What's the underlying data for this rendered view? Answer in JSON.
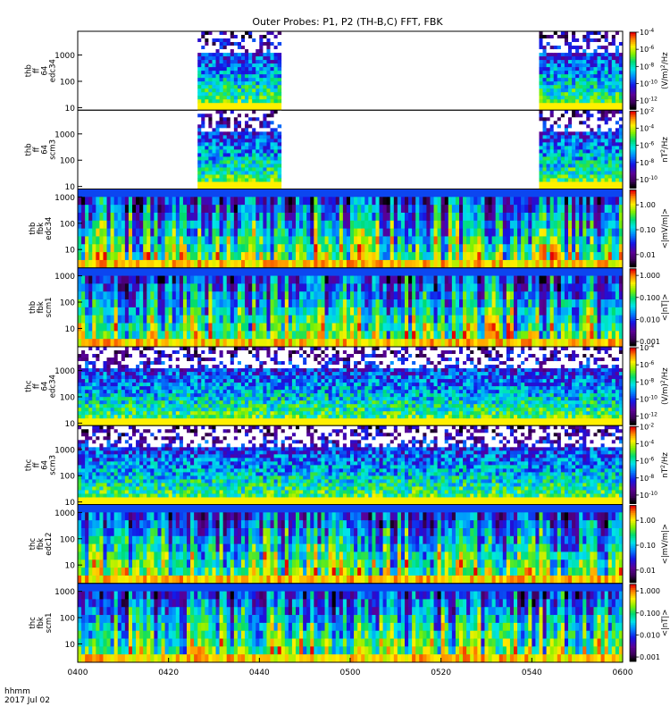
{
  "chart_data": {
    "type": "heatmap",
    "title": "Outer Probes: P1, P2 (TH-B,C) FFT, FBK",
    "x_axis": {
      "ticks": [
        "0400",
        "0420",
        "0440",
        "0500",
        "0520",
        "0540",
        "0600"
      ],
      "range_minutes": [
        0,
        120
      ],
      "label_line1": "hhmm",
      "label_line2": "2017 Jul 02"
    },
    "panels": [
      {
        "name_lines": [
          "thb",
          "ff",
          "64",
          "edc34"
        ],
        "kind": "fft",
        "y_ticks": [
          "1000",
          "100",
          "10"
        ],
        "y_range": [
          8,
          8000
        ],
        "colorbar": {
          "ticks": [
            "10^-4",
            "10^-6",
            "10^-8",
            "10^-10",
            "10^-12"
          ],
          "label": "(V/m)^2/Hz",
          "range_exp": [
            -13,
            -4
          ]
        },
        "coverage_minutes": [
          [
            26.5,
            44.5
          ],
          [
            101.5,
            120
          ]
        ]
      },
      {
        "name_lines": [
          "thb",
          "ff",
          "64",
          "scm3"
        ],
        "kind": "fft",
        "y_ticks": [
          "1000",
          "100",
          "10"
        ],
        "y_range": [
          8,
          8000
        ],
        "colorbar": {
          "ticks": [
            "10^-2",
            "10^-4",
            "10^-6",
            "10^-8",
            "10^-10"
          ],
          "label": "nT^2/Hz",
          "range_exp": [
            -11,
            -2
          ]
        },
        "coverage_minutes": [
          [
            26.5,
            44.5
          ],
          [
            101.5,
            120
          ]
        ]
      },
      {
        "name_lines": [
          "thb",
          "fbk",
          "edc34"
        ],
        "kind": "fbk",
        "y_ticks": [
          "1000",
          "100",
          "10"
        ],
        "y_range": [
          2,
          2000
        ],
        "colorbar": {
          "ticks": [
            "1.00",
            "0.10",
            "0.01"
          ],
          "label": "<|mV/m|>",
          "range_exp": [
            -2.5,
            0.6
          ]
        },
        "coverage_minutes": [
          [
            0,
            120
          ]
        ]
      },
      {
        "name_lines": [
          "thb",
          "fbk",
          "scm1"
        ],
        "kind": "fbk",
        "y_ticks": [
          "1000",
          "100",
          "10"
        ],
        "y_range": [
          2,
          2000
        ],
        "colorbar": {
          "ticks": [
            "1.000",
            "0.100",
            "0.010",
            "0.001"
          ],
          "label": "<|nT|>",
          "range_exp": [
            -3.2,
            0.3
          ]
        },
        "coverage_minutes": [
          [
            0,
            120
          ]
        ]
      },
      {
        "name_lines": [
          "thc",
          "ff",
          "64",
          "edc34"
        ],
        "kind": "fft",
        "y_ticks": [
          "1000",
          "100",
          "10"
        ],
        "y_range": [
          8,
          8000
        ],
        "colorbar": {
          "ticks": [
            "10^-4",
            "10^-6",
            "10^-8",
            "10^-10",
            "10^-12"
          ],
          "label": "(V/m)^2/Hz",
          "range_exp": [
            -13,
            -4
          ]
        },
        "coverage_minutes": [
          [
            0,
            120
          ]
        ]
      },
      {
        "name_lines": [
          "thc",
          "ff",
          "64",
          "scm3"
        ],
        "kind": "fft",
        "y_ticks": [
          "1000",
          "100",
          "10"
        ],
        "y_range": [
          8,
          8000
        ],
        "colorbar": {
          "ticks": [
            "10^-2",
            "10^-4",
            "10^-6",
            "10^-8",
            "10^-10"
          ],
          "label": "nT^2/Hz",
          "range_exp": [
            -11,
            -2
          ]
        },
        "coverage_minutes": [
          [
            0,
            120
          ]
        ]
      },
      {
        "name_lines": [
          "thc",
          "fbk",
          "edc12"
        ],
        "kind": "fbk",
        "y_ticks": [
          "1000",
          "100",
          "10"
        ],
        "y_range": [
          2,
          2000
        ],
        "colorbar": {
          "ticks": [
            "1.00",
            "0.10",
            "0.01"
          ],
          "label": "<|mV/m|>",
          "range_exp": [
            -2.5,
            0.6
          ]
        },
        "coverage_minutes": [
          [
            0,
            120
          ]
        ]
      },
      {
        "name_lines": [
          "thc",
          "fbk",
          "scm1"
        ],
        "kind": "fbk",
        "y_ticks": [
          "1000",
          "100",
          "10"
        ],
        "y_range": [
          2,
          2000
        ],
        "colorbar": {
          "ticks": [
            "1.000",
            "0.100",
            "0.010",
            "0.001"
          ],
          "label": "<|nT|>",
          "range_exp": [
            -3.2,
            0.3
          ]
        },
        "coverage_minutes": [
          [
            0,
            120
          ]
        ]
      }
    ]
  }
}
